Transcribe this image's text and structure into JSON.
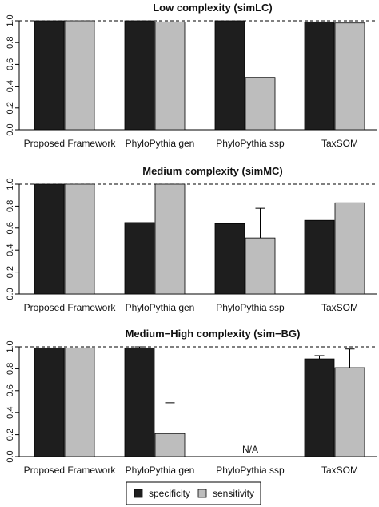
{
  "chart_data": [
    {
      "type": "bar",
      "title": "Low complexity (simLC)",
      "categories": [
        "Proposed Framework",
        "PhyloPythia gen",
        "PhyloPythia ssp",
        "TaxSOM"
      ],
      "series": [
        {
          "name": "specificity",
          "values": [
            1.0,
            1.0,
            1.0,
            0.99
          ],
          "errors": [
            null,
            null,
            null,
            null
          ]
        },
        {
          "name": "sensitivity",
          "values": [
            1.0,
            0.99,
            0.48,
            0.98
          ],
          "errors": [
            null,
            null,
            null,
            null
          ]
        }
      ],
      "ylim": [
        0,
        1.0
      ],
      "yticks": [
        "0.0",
        "0.2",
        "0.4",
        "0.6",
        "0.8",
        "1.0"
      ],
      "reference_line": 1.0,
      "annotations": []
    },
    {
      "type": "bar",
      "title": "Medium complexity (simMC)",
      "categories": [
        "Proposed Framework",
        "PhyloPythia gen",
        "PhyloPythia ssp",
        "TaxSOM"
      ],
      "series": [
        {
          "name": "specificity",
          "values": [
            1.0,
            0.65,
            0.64,
            0.67
          ],
          "errors": [
            null,
            null,
            null,
            null
          ]
        },
        {
          "name": "sensitivity",
          "values": [
            1.0,
            1.0,
            0.51,
            0.83
          ],
          "errors": [
            null,
            null,
            0.27,
            null
          ]
        }
      ],
      "ylim": [
        0,
        1.0
      ],
      "yticks": [
        "0.0",
        "0.2",
        "0.4",
        "0.6",
        "0.8",
        "1.0"
      ],
      "reference_line": 1.0,
      "annotations": []
    },
    {
      "type": "bar",
      "title": "Medium−High complexity (sim−BG)",
      "categories": [
        "Proposed Framework",
        "PhyloPythia gen",
        "PhyloPythia ssp",
        "TaxSOM"
      ],
      "series": [
        {
          "name": "specificity",
          "values": [
            0.99,
            0.99,
            null,
            0.89
          ],
          "errors": [
            null,
            0.01,
            null,
            0.03
          ]
        },
        {
          "name": "sensitivity",
          "values": [
            0.99,
            0.21,
            null,
            0.81
          ],
          "errors": [
            null,
            0.28,
            null,
            0.17
          ]
        }
      ],
      "ylim": [
        0,
        1.0
      ],
      "yticks": [
        "0.0",
        "0.2",
        "0.4",
        "0.6",
        "0.8",
        "1.0"
      ],
      "reference_line": 1.0,
      "annotations": [
        {
          "category_index": 2,
          "text": "N/A"
        }
      ]
    }
  ],
  "legend": {
    "items": [
      {
        "label": "specificity",
        "color": "#1e1e1e"
      },
      {
        "label": "sensitivity",
        "color": "#bdbdbd"
      }
    ]
  },
  "colors": {
    "specificity": "#1e1e1e",
    "sensitivity": "#bdbdbd"
  }
}
